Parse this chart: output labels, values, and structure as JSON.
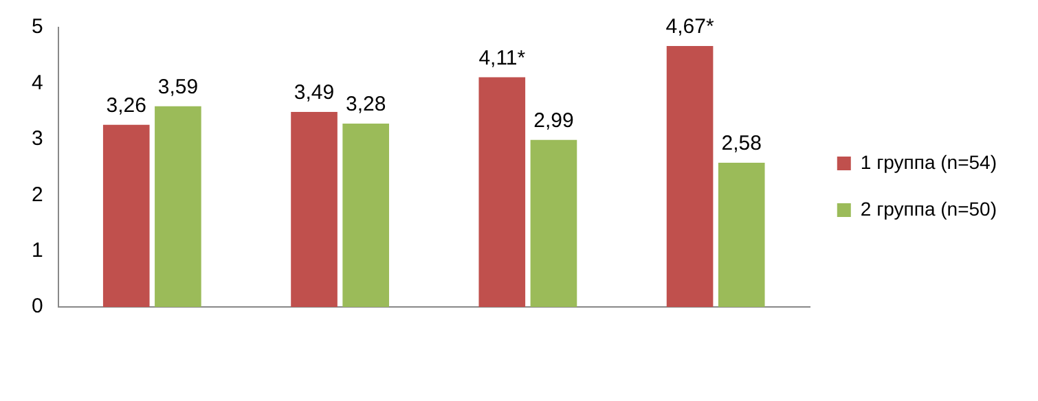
{
  "chart_data": {
    "type": "bar",
    "categories": [
      null,
      null,
      null,
      null
    ],
    "series": [
      {
        "name": "1 группа (n=54)",
        "color": "#c0504d",
        "values": [
          3.26,
          3.49,
          4.11,
          4.67
        ],
        "value_labels": [
          "3,26",
          "3,49",
          "4,11*",
          "4,67*"
        ]
      },
      {
        "name": "2 группа (n=50)",
        "color": "#9bbb59",
        "values": [
          3.59,
          3.28,
          2.99,
          2.58
        ],
        "value_labels": [
          "3,59",
          "3,28",
          "2,99",
          "2,58"
        ]
      }
    ],
    "ylim": [
      0,
      5
    ],
    "yticks": [
      0,
      1,
      2,
      3,
      4,
      5
    ],
    "grid": false,
    "legend": "right"
  }
}
